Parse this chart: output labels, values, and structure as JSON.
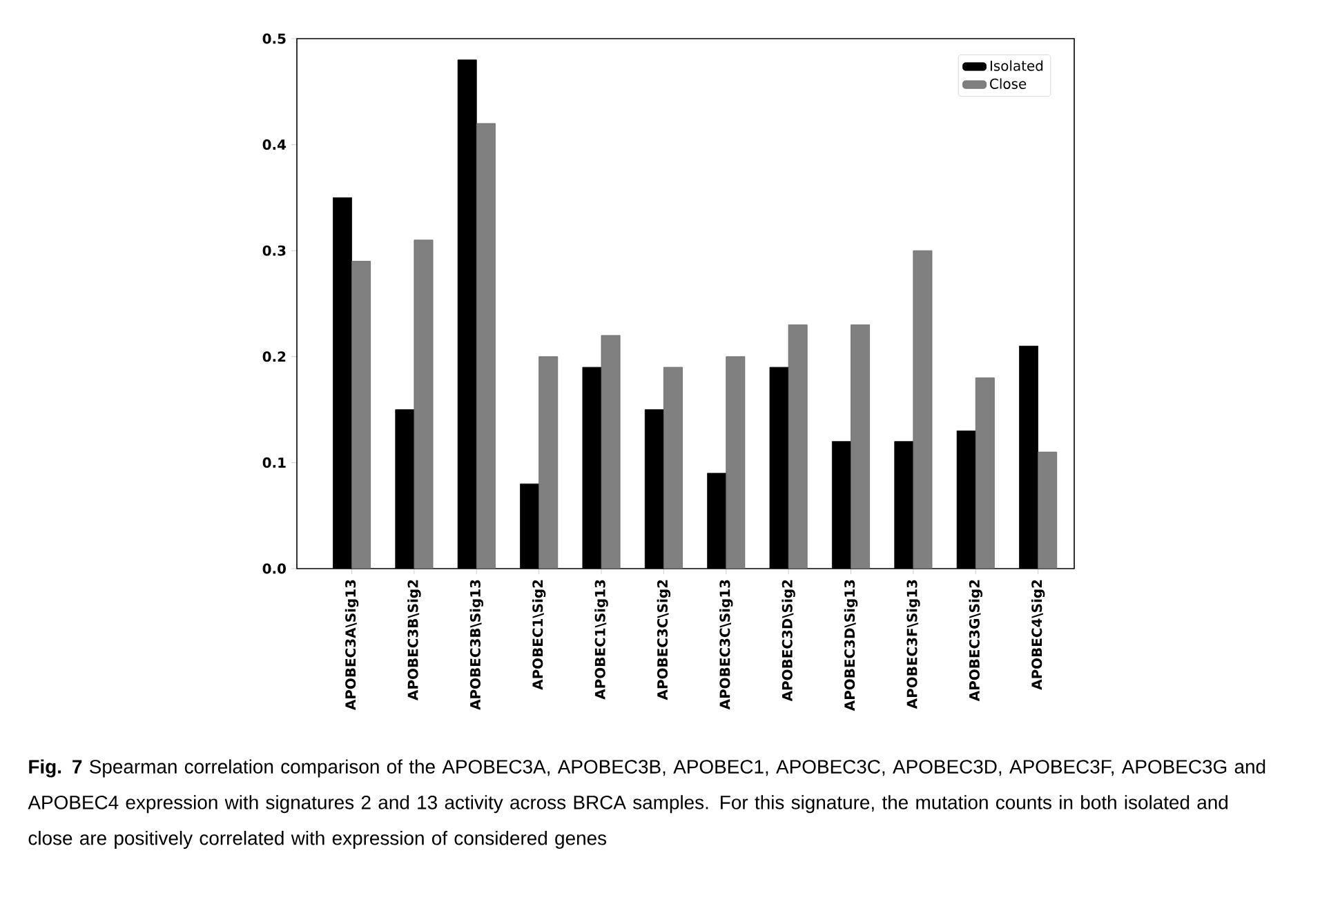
{
  "chart_data": {
    "type": "bar",
    "categories": [
      "APOBEC3A\\Sig13",
      "APOBEC3B\\Sig2",
      "APOBEC3B\\Sig13",
      "APOBEC1\\Sig2",
      "APOBEC1\\Sig13",
      "APOBEC3C\\Sig2",
      "APOBEC3C\\Sig13",
      "APOBEC3D\\Sig2",
      "APOBEC3D\\Sig13",
      "APOBEC3F\\Sig13",
      "APOBEC3G\\Sig2",
      "APOBEC4\\Sig2"
    ],
    "series": [
      {
        "name": "Isolated",
        "color": "#000000",
        "values": [
          0.35,
          0.15,
          0.48,
          0.08,
          0.19,
          0.15,
          0.09,
          0.19,
          0.12,
          0.12,
          0.13,
          0.21
        ]
      },
      {
        "name": "Close",
        "color": "#808080",
        "values": [
          0.29,
          0.31,
          0.42,
          0.2,
          0.22,
          0.19,
          0.2,
          0.23,
          0.23,
          0.3,
          0.18,
          0.11
        ]
      }
    ],
    "ylim": [
      0,
      0.5
    ],
    "yticks": [
      {
        "value": 0,
        "label": "0.0"
      },
      0.1,
      0.2,
      0.3,
      0.4,
      0.5
    ],
    "legend": "top right",
    "annotations": [
      "**Fig. 7** Spearman correlation comparison of the APOBEC3A, APOBEC3B, APOBEC1, APOBEC3C, APOBEC3D, APOBEC3F, APOBEC3G and APOBEC4 expression with signatures 2 and 13 activity across BRCA samples. For this signature, the mutation counts in both isolated and close are positively correlated with expression of considered genes"
    ]
  }
}
